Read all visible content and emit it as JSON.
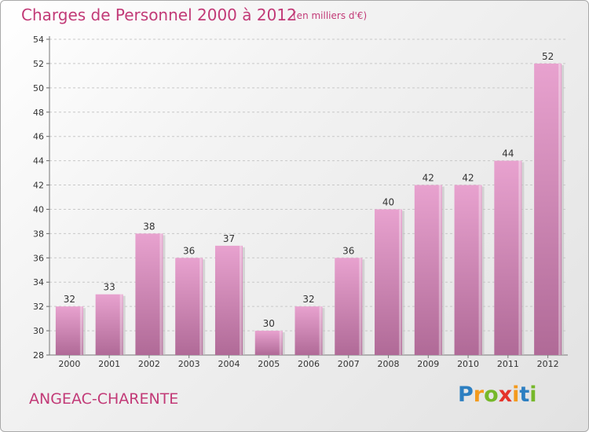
{
  "title": "Charges de Personnel 2000 à 2012",
  "subtitle": "(en milliers d'€)",
  "place_name": "ANGEAC-CHARENTE",
  "logo": {
    "letters": [
      "P",
      "r",
      "o",
      "x",
      "i",
      "t",
      "i"
    ],
    "colors": [
      "#2d7fc1",
      "#f39a1d",
      "#76b82a",
      "#e5332a",
      "#f39a1d",
      "#2d7fc1",
      "#76b82a"
    ]
  },
  "colors": {
    "title": "#c23a77",
    "bar_top": "#e8a2cf",
    "bar_bottom": "#b06a97"
  },
  "chart_data": {
    "type": "bar",
    "title": "Charges de Personnel 2000 à 2012",
    "subtitle": "(en milliers d'€)",
    "categories": [
      "2000",
      "2001",
      "2002",
      "2003",
      "2004",
      "2005",
      "2006",
      "2007",
      "2008",
      "2009",
      "2010",
      "2011",
      "2012"
    ],
    "values": [
      32,
      33,
      38,
      36,
      37,
      30,
      32,
      36,
      40,
      42,
      42,
      44,
      52
    ],
    "ylim": [
      28,
      54
    ],
    "yticks": [
      28,
      30,
      32,
      34,
      36,
      38,
      40,
      42,
      44,
      46,
      48,
      50,
      52,
      54
    ],
    "grid": true,
    "legend": "none"
  }
}
